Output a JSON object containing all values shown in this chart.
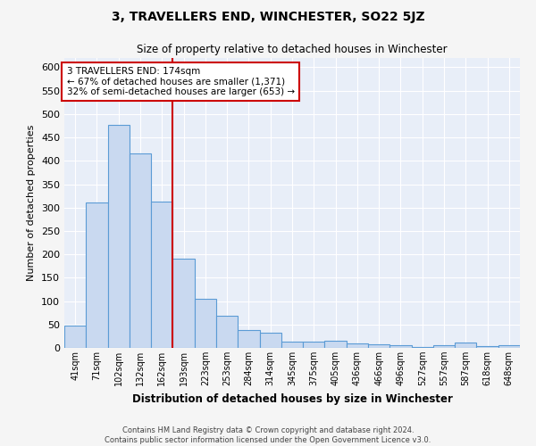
{
  "title": "3, TRAVELLERS END, WINCHESTER, SO22 5JZ",
  "subtitle": "Size of property relative to detached houses in Winchester",
  "xlabel": "Distribution of detached houses by size in Winchester",
  "ylabel": "Number of detached properties",
  "categories": [
    "41sqm",
    "71sqm",
    "102sqm",
    "132sqm",
    "162sqm",
    "193sqm",
    "223sqm",
    "253sqm",
    "284sqm",
    "314sqm",
    "345sqm",
    "375sqm",
    "405sqm",
    "436sqm",
    "466sqm",
    "496sqm",
    "527sqm",
    "557sqm",
    "587sqm",
    "618sqm",
    "648sqm"
  ],
  "values": [
    47,
    311,
    476,
    415,
    313,
    191,
    105,
    68,
    39,
    32,
    14,
    14,
    15,
    9,
    7,
    5,
    1,
    6,
    11,
    4,
    6
  ],
  "bar_color": "#c9d9f0",
  "bar_edge_color": "#5b9bd5",
  "background_color": "#e8eef8",
  "grid_color": "#ffffff",
  "fig_background": "#f5f5f5",
  "red_line_x": 4.5,
  "annotation_text": "3 TRAVELLERS END: 174sqm\n← 67% of detached houses are smaller (1,371)\n32% of semi-detached houses are larger (653) →",
  "annotation_box_color": "#ffffff",
  "annotation_box_edge": "#cc0000",
  "ylim": [
    0,
    620
  ],
  "yticks": [
    0,
    50,
    100,
    150,
    200,
    250,
    300,
    350,
    400,
    450,
    500,
    550,
    600
  ],
  "footer_line1": "Contains HM Land Registry data © Crown copyright and database right 2024.",
  "footer_line2": "Contains public sector information licensed under the Open Government Licence v3.0."
}
